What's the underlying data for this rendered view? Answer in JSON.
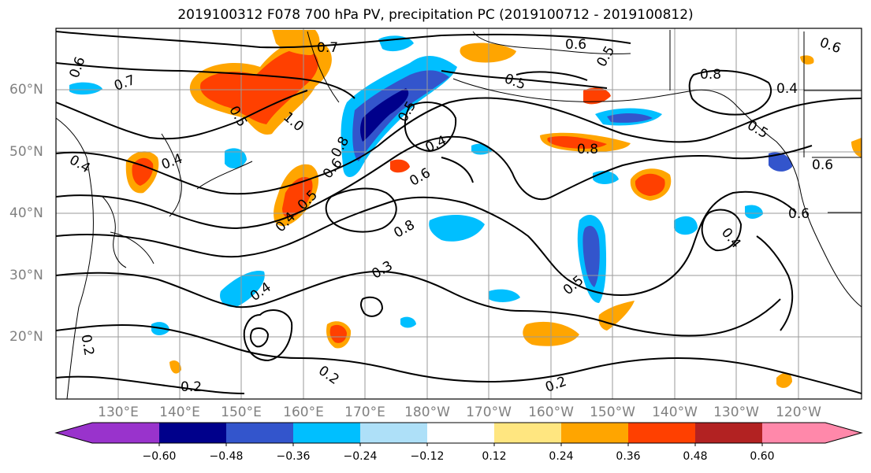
{
  "title": "2019100312 F078 700 hPa PV, precipitation PC (2019100712 - 2019100812)",
  "lat_labels": [
    "60°N",
    "50°N",
    "40°N",
    "30°N",
    "20°N"
  ],
  "lon_labels": [
    "130°E",
    "140°E",
    "150°E",
    "160°E",
    "170°E",
    "180°W",
    "170°W",
    "160°W",
    "150°W",
    "140°W",
    "130°W",
    "120°W"
  ],
  "contour_labels": [
    "0.6",
    "0.7",
    "0.7",
    "0.5",
    "1.0",
    "0.8",
    "0.6",
    "0.4",
    "0.4",
    "0.4",
    "0.5",
    "0.8",
    "0.3",
    "0.4",
    "0.2",
    "0.2",
    "0.6",
    "0.5",
    "0.8",
    "0.4",
    "0.6",
    "0.6",
    "0.5",
    "0.5",
    "0.4",
    "0.8",
    "0.5",
    "0.6",
    "0.2",
    "0.5",
    "0.4",
    "0.2",
    "0.6"
  ],
  "colorbar": {
    "tick_labels": [
      "−0.60",
      "−0.48",
      "−0.36",
      "−0.24",
      "−0.12",
      "0.12",
      "0.24",
      "0.36",
      "0.48",
      "0.60"
    ],
    "colors": [
      "#9933cc",
      "#00008b",
      "#3355cc",
      "#00bfff",
      "#aee0f8",
      "#ffffff",
      "#ffe680",
      "#ffa500",
      "#ff4000",
      "#b22222",
      "#ff88aa"
    ]
  },
  "colors": {
    "frame": "#000000",
    "grid": "#9a9a9a",
    "axis_label": "#808080"
  }
}
